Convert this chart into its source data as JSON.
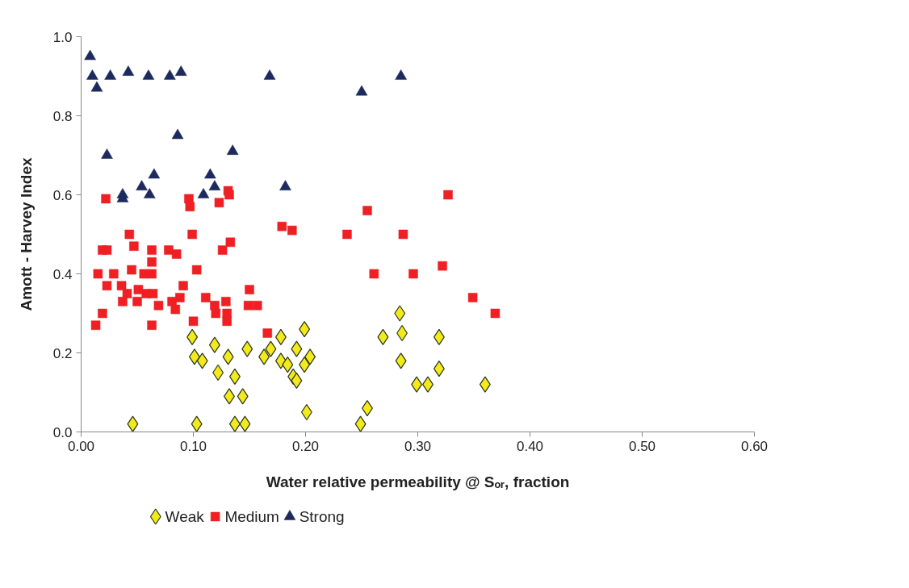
{
  "chart_data": {
    "type": "scatter",
    "xlabel": "Water relative permeability @ Sₒᵣ, fraction",
    "ylabel": "Amott - Harvey Index",
    "xlim": [
      0,
      0.6
    ],
    "ylim": [
      0,
      1.0
    ],
    "xticks": [
      {
        "value": 0,
        "label": "0.00"
      },
      {
        "value": 0.1,
        "label": "0.10"
      },
      {
        "value": 0.2,
        "label": "0.20"
      },
      {
        "value": 0.3,
        "label": "0.30"
      },
      {
        "value": 0.4,
        "label": "0.40"
      },
      {
        "value": 0.5,
        "label": "0.50"
      },
      {
        "value": 0.6,
        "label": "0.60"
      }
    ],
    "yticks": [
      {
        "value": 0,
        "label": "0.0"
      },
      {
        "value": 0.2,
        "label": "0.2"
      },
      {
        "value": 0.4,
        "label": "0.4"
      },
      {
        "value": 0.6,
        "label": "0.6"
      },
      {
        "value": 0.8,
        "label": "0.8"
      },
      {
        "value": 1.0,
        "label": "1.0"
      }
    ],
    "grid": false,
    "legend": "bottom left",
    "series": [
      {
        "name": "Weak",
        "color": "#f2ea1a",
        "marker": "diamond",
        "x": [
          0.099,
          0.119,
          0.148,
          0.101,
          0.108,
          0.131,
          0.122,
          0.137,
          0.132,
          0.144,
          0.046,
          0.103,
          0.137,
          0.146,
          0.178,
          0.169,
          0.163,
          0.178,
          0.184,
          0.192,
          0.189,
          0.192,
          0.199,
          0.204,
          0.199,
          0.201,
          0.255,
          0.249,
          0.269,
          0.284,
          0.286,
          0.285,
          0.319,
          0.319,
          0.299,
          0.309,
          0.36
        ],
        "values": [
          0.24,
          0.22,
          0.21,
          0.19,
          0.18,
          0.19,
          0.15,
          0.14,
          0.09,
          0.09,
          0.02,
          0.02,
          0.02,
          0.02,
          0.24,
          0.21,
          0.19,
          0.18,
          0.17,
          0.21,
          0.14,
          0.13,
          0.26,
          0.19,
          0.17,
          0.05,
          0.06,
          0.02,
          0.24,
          0.3,
          0.25,
          0.18,
          0.24,
          0.16,
          0.12,
          0.12,
          0.12
        ]
      },
      {
        "name": "Medium",
        "color": "#ee2024",
        "marker": "square",
        "x": [
          0.022,
          0.096,
          0.097,
          0.123,
          0.131,
          0.132,
          0.043,
          0.099,
          0.047,
          0.063,
          0.078,
          0.085,
          0.133,
          0.126,
          0.019,
          0.023,
          0.063,
          0.103,
          0.015,
          0.029,
          0.045,
          0.056,
          0.063,
          0.023,
          0.036,
          0.051,
          0.041,
          0.058,
          0.064,
          0.037,
          0.05,
          0.069,
          0.091,
          0.088,
          0.081,
          0.084,
          0.111,
          0.119,
          0.129,
          0.12,
          0.13,
          0.13,
          0.15,
          0.149,
          0.157,
          0.019,
          0.013,
          0.1,
          0.063,
          0.179,
          0.188,
          0.166,
          0.327,
          0.255,
          0.237,
          0.287,
          0.261,
          0.296,
          0.322,
          0.349,
          0.369
        ],
        "values": [
          0.59,
          0.59,
          0.57,
          0.58,
          0.61,
          0.6,
          0.5,
          0.5,
          0.47,
          0.46,
          0.46,
          0.45,
          0.48,
          0.46,
          0.46,
          0.46,
          0.43,
          0.41,
          0.4,
          0.4,
          0.41,
          0.4,
          0.4,
          0.37,
          0.37,
          0.36,
          0.35,
          0.35,
          0.35,
          0.33,
          0.33,
          0.32,
          0.37,
          0.34,
          0.33,
          0.31,
          0.34,
          0.32,
          0.33,
          0.3,
          0.3,
          0.28,
          0.36,
          0.32,
          0.32,
          0.3,
          0.27,
          0.28,
          0.27,
          0.52,
          0.51,
          0.25,
          0.6,
          0.56,
          0.5,
          0.5,
          0.4,
          0.4,
          0.42,
          0.34,
          0.3
        ]
      },
      {
        "name": "Strong",
        "color": "#1c2a5e",
        "marker": "triangle",
        "x": [
          0.008,
          0.01,
          0.026,
          0.014,
          0.042,
          0.06,
          0.079,
          0.089,
          0.168,
          0.086,
          0.023,
          0.135,
          0.065,
          0.054,
          0.061,
          0.037,
          0.037,
          0.115,
          0.119,
          0.109,
          0.182,
          0.25,
          0.285
        ],
        "values": [
          0.95,
          0.9,
          0.9,
          0.87,
          0.91,
          0.9,
          0.9,
          0.91,
          0.9,
          0.75,
          0.7,
          0.71,
          0.65,
          0.62,
          0.6,
          0.6,
          0.59,
          0.65,
          0.62,
          0.6,
          0.62,
          0.86,
          0.9
        ]
      }
    ]
  }
}
